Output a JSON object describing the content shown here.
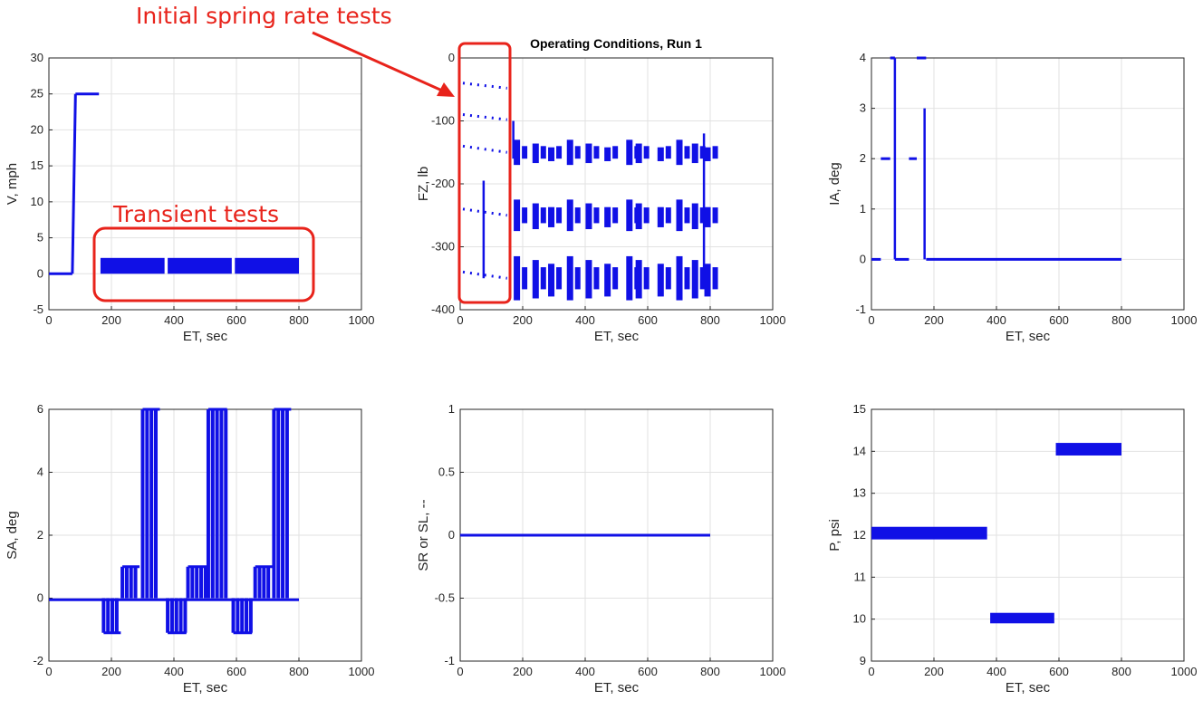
{
  "figure_title": "Operating Conditions, Run 1",
  "annotations": {
    "spring": "Initial spring rate tests",
    "transient": "Transient tests"
  },
  "colors": {
    "data": "#1010e6",
    "annotation": "#e8231b",
    "grid": "#e2e2e2"
  },
  "chart_data": [
    {
      "type": "scatter",
      "xlabel": "ET, sec",
      "ylabel": "V, mph",
      "xlim": [
        0,
        1000
      ],
      "ylim": [
        -5,
        30
      ],
      "xticks": [
        "0",
        "200",
        "400",
        "600",
        "800",
        "1000"
      ],
      "yticks": [
        "-5",
        "0",
        "5",
        "10",
        "15",
        "20",
        "25",
        "30"
      ],
      "grid": true,
      "series": [
        {
          "segments": [
            [
              0,
              0,
              75,
              0
            ],
            [
              75,
              0,
              85,
              25
            ],
            [
              85,
              25,
              160,
              25
            ]
          ],
          "bands": [
            [
              165,
              0,
              370,
              2.2
            ],
            [
              380,
              0,
              585,
              2.2
            ],
            [
              595,
              0,
              800,
              2.2
            ]
          ]
        }
      ]
    },
    {
      "type": "scatter",
      "title": "Operating Conditions, Run 1",
      "xlabel": "ET, sec",
      "ylabel": "FZ, lb",
      "xlim": [
        0,
        1000
      ],
      "ylim": [
        -400,
        0
      ],
      "xticks": [
        "0",
        "200",
        "400",
        "600",
        "800",
        "1000"
      ],
      "yticks": [
        "0",
        "-100",
        "-200",
        "-300",
        "-400"
      ],
      "grid": true,
      "series": [
        {
          "dotted": [
            [
              0,
              -40,
              150,
              -48
            ],
            [
              0,
              -90,
              150,
              -98
            ],
            [
              0,
              -140,
              150,
              -150
            ],
            [
              0,
              -240,
              150,
              -250
            ],
            [
              0,
              -340,
              150,
              -350
            ]
          ],
          "spikes": [
            [
              75,
              -195,
              -350
            ],
            [
              170,
              -100,
              -160
            ],
            [
              780,
              -120,
              -350
            ]
          ],
          "clusters": {
            "levels": [
              -150,
              -250,
              -350
            ],
            "x": [
              180,
              240,
              290,
              350,
              410,
              470,
              540,
              570,
              640,
              700,
              750,
              790
            ],
            "halfwidth": [
              20,
              25,
              35
            ]
          }
        }
      ]
    },
    {
      "type": "scatter",
      "xlabel": "ET, sec",
      "ylabel": "IA, deg",
      "xlim": [
        0,
        1000
      ],
      "ylim": [
        -1,
        4
      ],
      "xticks": [
        "0",
        "200",
        "400",
        "600",
        "800",
        "1000"
      ],
      "yticks": [
        "-1",
        "0",
        "1",
        "2",
        "3",
        "4"
      ],
      "grid": true,
      "series": [
        {
          "segments": [
            [
              0,
              0,
              30,
              0
            ],
            [
              30,
              2,
              60,
              2
            ],
            [
              60,
              4,
              75,
              4
            ],
            [
              75,
              0,
              120,
              0
            ],
            [
              120,
              2,
              145,
              2
            ],
            [
              145,
              4,
              175,
              4
            ],
            [
              175,
              0,
              800,
              0
            ]
          ],
          "spikes": [
            [
              75,
              0,
              4
            ],
            [
              170,
              0,
              3
            ]
          ]
        }
      ]
    },
    {
      "type": "scatter",
      "xlabel": "ET, sec",
      "ylabel": "SA, deg",
      "xlim": [
        0,
        1000
      ],
      "ylim": [
        -2,
        6
      ],
      "xticks": [
        "0",
        "200",
        "400",
        "600",
        "800",
        "1000"
      ],
      "yticks": [
        "-2",
        "0",
        "2",
        "4",
        "6"
      ],
      "grid": true,
      "series": [
        {
          "segments": [
            [
              0,
              -0.05,
              800,
              -0.05
            ]
          ],
          "blocks": [
            [
              175,
              230,
              -1.1
            ],
            [
              235,
              290,
              1.0
            ],
            [
              300,
              355,
              6.0
            ],
            [
              380,
              440,
              -1.1
            ],
            [
              445,
              505,
              1.0
            ],
            [
              510,
              570,
              6.0
            ],
            [
              590,
              650,
              -1.1
            ],
            [
              660,
              715,
              1.0
            ],
            [
              720,
              775,
              6.0
            ]
          ]
        }
      ]
    },
    {
      "type": "scatter",
      "xlabel": "ET, sec",
      "ylabel": "SR or SL, --",
      "xlim": [
        0,
        1000
      ],
      "ylim": [
        -1,
        1
      ],
      "xticks": [
        "0",
        "200",
        "400",
        "600",
        "800",
        "1000"
      ],
      "yticks": [
        "-1",
        "-0.5",
        "0",
        "0.5",
        "1"
      ],
      "grid": true,
      "series": [
        {
          "segments": [
            [
              0,
              0,
              800,
              0
            ]
          ]
        }
      ]
    },
    {
      "type": "scatter",
      "xlabel": "ET, sec",
      "ylabel": "P, psi",
      "xlim": [
        0,
        1000
      ],
      "ylim": [
        9,
        15
      ],
      "xticks": [
        "0",
        "200",
        "400",
        "600",
        "800",
        "1000"
      ],
      "yticks": [
        "9",
        "10",
        "11",
        "12",
        "13",
        "14",
        "15"
      ],
      "grid": true,
      "series": [
        {
          "bands": [
            [
              0,
              11.9,
              370,
              12.2
            ],
            [
              380,
              9.9,
              585,
              10.15
            ],
            [
              590,
              13.9,
              800,
              14.2
            ]
          ]
        }
      ]
    }
  ]
}
